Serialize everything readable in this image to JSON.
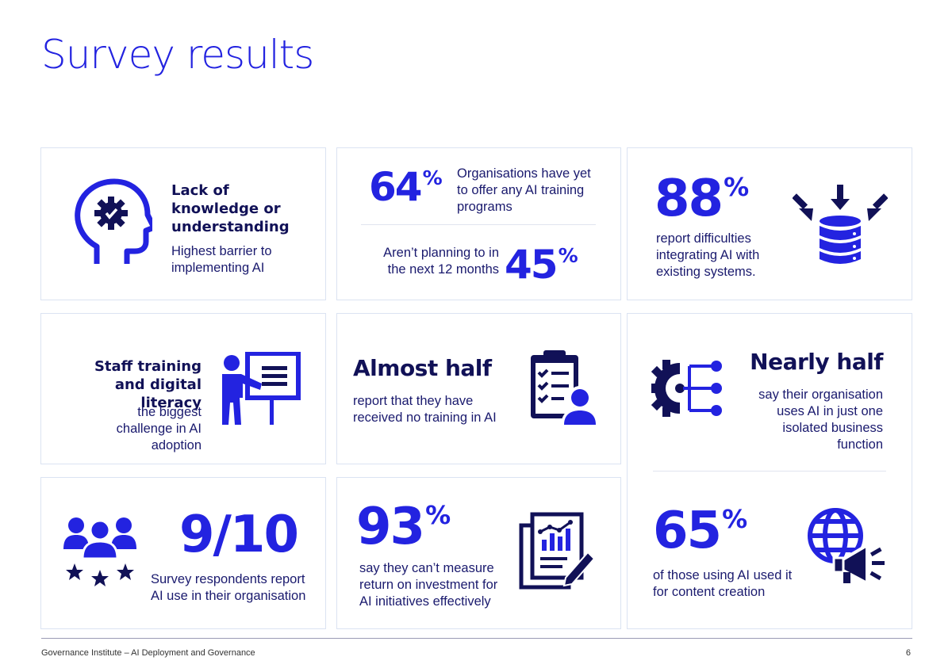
{
  "page": {
    "title": "Survey results"
  },
  "cards": {
    "knowledge": {
      "heading": "Lack of knowledge or understanding",
      "text": "Highest barrier to implementing AI",
      "icon": "head-gear-icon"
    },
    "training": {
      "stat1": "64",
      "stat1_unit": "%",
      "text1": "Organisations have yet to offer any AI training programs",
      "text2": "Aren’t planning to in the next 12 months",
      "stat2": "45",
      "stat2_unit": "%"
    },
    "integration": {
      "stat": "88",
      "stat_unit": "%",
      "text": "report difficulties integrating AI with existing systems.",
      "icon": "database-arrows-icon"
    },
    "staff": {
      "heading": "Staff training and digital literacy",
      "text": "the biggest challenge in AI adoption",
      "icon": "presenter-board-icon"
    },
    "almost_half": {
      "heading": "Almost half",
      "text": "report that they have received no training in AI",
      "icon": "clipboard-user-icon"
    },
    "nearly_half": {
      "heading": "Nearly half",
      "text": "say their organisation uses AI in just one isolated business function",
      "icon": "gear-network-icon"
    },
    "nine_ten": {
      "stat": "9/10",
      "text": "Survey respondents report AI use in their organisation",
      "icon": "people-stars-icon"
    },
    "roi": {
      "stat": "93",
      "stat_unit": "%",
      "text": "say they can’t measure return on investment for AI initiatives effectively",
      "icon": "report-chart-icon"
    },
    "content": {
      "stat": "65",
      "stat_unit": "%",
      "text": "of those using AI used it for content creation",
      "icon": "globe-megaphone-icon"
    }
  },
  "footer": {
    "org": "Governance Institute",
    "separator": " – ",
    "doc": "AI Deployment and Governance",
    "page_number": "6"
  },
  "colors": {
    "accent": "#2323e0",
    "navy": "#111157",
    "border": "#dbe3f2"
  }
}
